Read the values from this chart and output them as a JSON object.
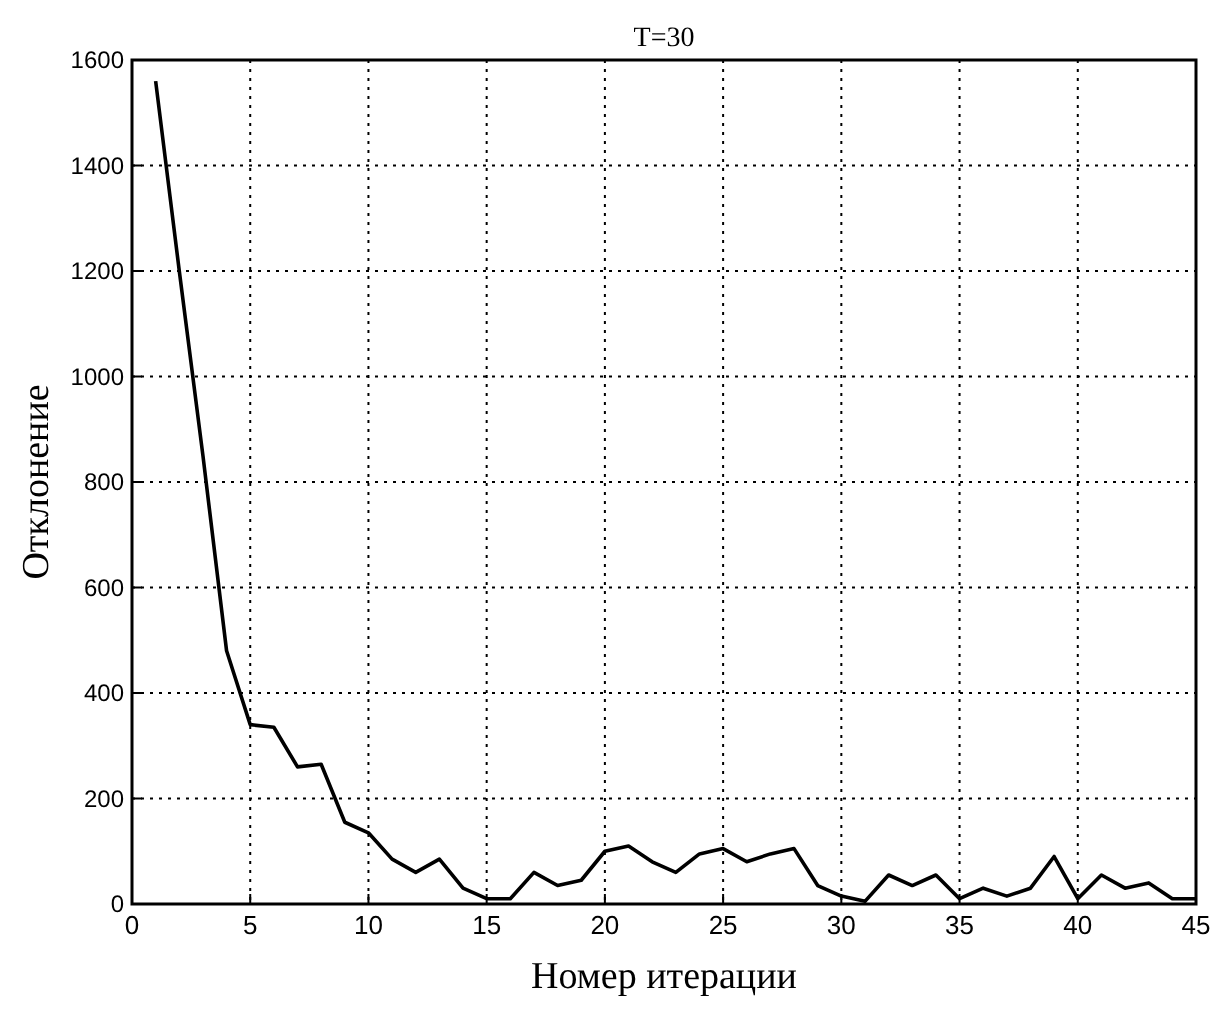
{
  "chart_data": {
    "type": "line",
    "title": "T=30",
    "xlabel": "Номер итерации",
    "ylabel": "Отклонение",
    "x": [
      1,
      2,
      3,
      4,
      5,
      6,
      7,
      8,
      9,
      10,
      11,
      12,
      13,
      14,
      15,
      16,
      17,
      18,
      19,
      20,
      21,
      22,
      23,
      24,
      25,
      26,
      27,
      28,
      29,
      30,
      31,
      32,
      33,
      34,
      35,
      36,
      37,
      38,
      39,
      40,
      41,
      42,
      43,
      44,
      45
    ],
    "series": [
      {
        "color": "#000000",
        "values": [
          1560,
          1200,
          850,
          480,
          340,
          335,
          260,
          265,
          155,
          135,
          85,
          60,
          85,
          30,
          10,
          10,
          60,
          35,
          45,
          100,
          110,
          80,
          60,
          95,
          105,
          80,
          95,
          105,
          35,
          15,
          5,
          55,
          35,
          55,
          10,
          30,
          15,
          30,
          90,
          10,
          55,
          30,
          40,
          10,
          10
        ]
      }
    ],
    "xlim": [
      0,
      45
    ],
    "xticks": [
      0,
      5,
      10,
      15,
      20,
      25,
      30,
      35,
      40,
      45
    ],
    "ylim": [
      0,
      1600
    ],
    "yticks": [
      0,
      200,
      400,
      600,
      800,
      1000,
      1200,
      1400,
      1600
    ],
    "grid": true,
    "line_style": "solid",
    "marker": "none"
  }
}
